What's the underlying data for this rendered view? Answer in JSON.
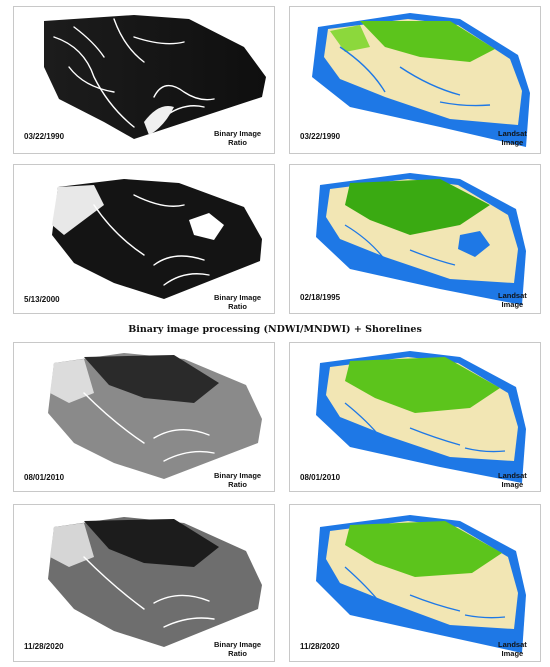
{
  "caption": "Binary image processing (NDWI/MNDWI) + Shorelines",
  "panels": [
    {
      "type": "binary",
      "date": "03/22/1990",
      "label": [
        "Binary Image",
        "Ratio"
      ]
    },
    {
      "type": "landsat",
      "date": "03/22/1990",
      "label": [
        "Landsat",
        "Image"
      ]
    },
    {
      "type": "binary",
      "date": "5/13/2000",
      "label": [
        "Binary Image",
        "Ratio"
      ]
    },
    {
      "type": "landsat",
      "date": "02/18/1995",
      "label": [
        "Landsat",
        "Image"
      ]
    },
    {
      "type": "binary",
      "date": "08/01/2010",
      "label": [
        "Binary Image",
        "Ratio"
      ]
    },
    {
      "type": "landsat",
      "date": "08/01/2010",
      "label": [
        "Landsat",
        "Image"
      ]
    },
    {
      "type": "binary",
      "date": "11/28/2020",
      "label": [
        "Binary Image",
        "Ratio"
      ]
    },
    {
      "type": "landsat",
      "date": "11/28/2020",
      "label": [
        "Landsat",
        "Image"
      ]
    }
  ],
  "colors": {
    "water": "#1e78e6",
    "land": "#f2e6b4",
    "vegetation": "#5cc41c",
    "binary_dark": "#141414",
    "binary_mid": "#7a7a7a",
    "binary_light": "#ffffff"
  }
}
